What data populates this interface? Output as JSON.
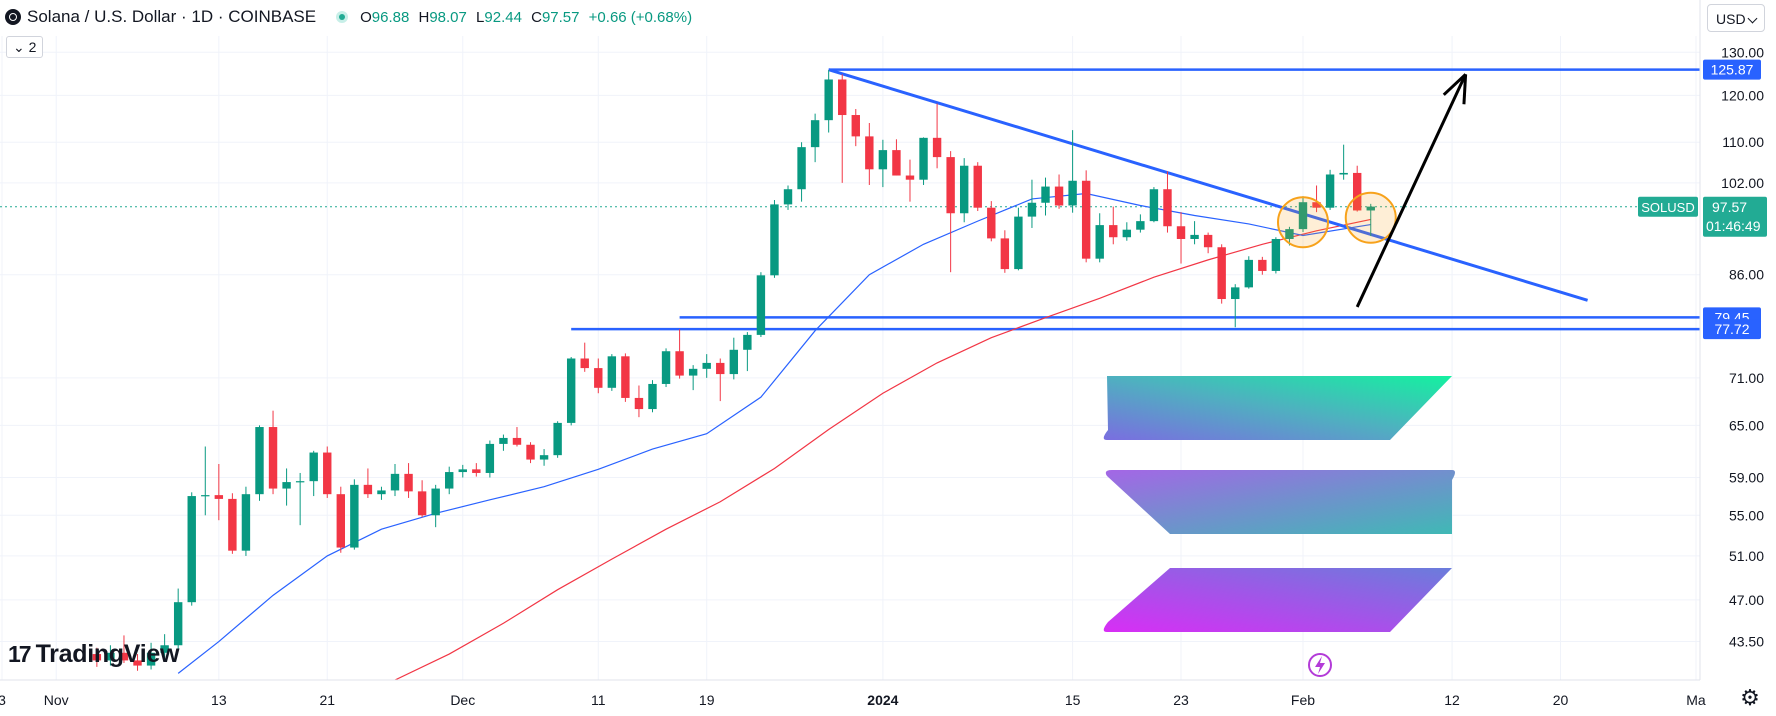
{
  "header": {
    "title": "Solana / U.S. Dollar · 1D · COINBASE",
    "open_label": "O",
    "open": "96.88",
    "high_label": "H",
    "high": "98.07",
    "low_label": "L",
    "low": "92.44",
    "close_label": "C",
    "close": "97.57",
    "change": "+0.66 (+0.68%)"
  },
  "indicator_count": "2",
  "currency": "USD",
  "brand": "TradingView",
  "colors": {
    "up": "#089981",
    "down": "#f23645",
    "trendline": "#2962ff",
    "ma_fast": "#2962ff",
    "ma_slow": "#f23645",
    "last_price": "#22ab94",
    "arrow": "#000000",
    "circle": "#f7a21b"
  },
  "chart_data": {
    "type": "candlestick",
    "symbol_tag": "SOLUSD",
    "last_price": "97.57",
    "countdown": "01:46:49",
    "y_axis": {
      "scale": "log",
      "ylim": [
        40.5,
        134
      ],
      "ticks": [
        "130.00",
        "120.00",
        "110.00",
        "102.00",
        "86.00",
        "71.00",
        "65.00",
        "59.00",
        "55.00",
        "51.00",
        "47.00",
        "43.50"
      ]
    },
    "x_axis": {
      "start": "2023-10-28",
      "end": "2024-03-01",
      "tick_labels": [
        {
          "label": "3",
          "date": "2023-10-28"
        },
        {
          "label": "Nov",
          "date": "2023-11-01"
        },
        {
          "label": "13",
          "date": "2023-11-13"
        },
        {
          "label": "21",
          "date": "2023-11-21"
        },
        {
          "label": "Dec",
          "date": "2023-12-01"
        },
        {
          "label": "11",
          "date": "2023-12-11"
        },
        {
          "label": "19",
          "date": "2023-12-19"
        },
        {
          "label": "2024",
          "date": "2024-01-01"
        },
        {
          "label": "15",
          "date": "2024-01-15"
        },
        {
          "label": "23",
          "date": "2024-01-23"
        },
        {
          "label": "Feb",
          "date": "2024-02-01"
        },
        {
          "label": "12",
          "date": "2024-02-12"
        },
        {
          "label": "20",
          "date": "2024-02-20"
        },
        {
          "label": "Ma",
          "date": "2024-03-01"
        }
      ]
    },
    "ohlc": [
      [
        "2023-11-04",
        42.5,
        43.0,
        41.5,
        42.0
      ],
      [
        "2023-11-05",
        42.0,
        43.2,
        41.6,
        42.6
      ],
      [
        "2023-11-06",
        42.6,
        44.0,
        41.8,
        42.0
      ],
      [
        "2023-11-07",
        42.0,
        42.5,
        41.2,
        41.6
      ],
      [
        "2023-11-08",
        41.6,
        43.4,
        41.3,
        42.6
      ],
      [
        "2023-11-09",
        42.6,
        44.1,
        42.0,
        43.2
      ],
      [
        "2023-11-10",
        43.2,
        48.0,
        42.9,
        46.8
      ],
      [
        "2023-11-11",
        46.8,
        57.4,
        46.5,
        57.0
      ],
      [
        "2023-11-12",
        57.0,
        62.5,
        55.0,
        57.1
      ],
      [
        "2023-11-13",
        57.1,
        60.5,
        54.5,
        56.7
      ],
      [
        "2023-11-14",
        56.7,
        57.3,
        51.2,
        51.5
      ],
      [
        "2023-11-15",
        51.5,
        58.0,
        51.0,
        57.2
      ],
      [
        "2023-11-16",
        57.2,
        65.0,
        56.5,
        64.8
      ],
      [
        "2023-11-17",
        64.8,
        66.8,
        57.2,
        57.8
      ],
      [
        "2023-11-18",
        57.8,
        60.0,
        56.0,
        58.5
      ],
      [
        "2023-11-19",
        58.5,
        59.5,
        54.0,
        58.6
      ],
      [
        "2023-11-20",
        58.6,
        62.0,
        57.0,
        61.8
      ],
      [
        "2023-11-21",
        61.8,
        62.5,
        56.8,
        57.2
      ],
      [
        "2023-11-22",
        57.2,
        58.0,
        51.3,
        51.8
      ],
      [
        "2023-11-23",
        51.8,
        58.8,
        51.6,
        58.2
      ],
      [
        "2023-11-24",
        58.2,
        60.0,
        56.8,
        57.2
      ],
      [
        "2023-11-25",
        57.2,
        58.0,
        56.6,
        57.6
      ],
      [
        "2023-11-26",
        57.6,
        60.5,
        57.0,
        59.4
      ],
      [
        "2023-11-27",
        59.4,
        60.6,
        56.8,
        57.5
      ],
      [
        "2023-11-28",
        57.5,
        58.7,
        54.8,
        55.0
      ],
      [
        "2023-11-29",
        55.0,
        58.2,
        53.8,
        57.8
      ],
      [
        "2023-11-30",
        57.8,
        60.2,
        57.2,
        59.6
      ],
      [
        "2023-12-01",
        59.6,
        60.4,
        59.0,
        59.9
      ],
      [
        "2023-12-02",
        59.9,
        60.6,
        59.1,
        59.5
      ],
      [
        "2023-12-03",
        59.5,
        63.2,
        59.0,
        62.8
      ],
      [
        "2023-12-04",
        62.8,
        63.9,
        62.0,
        63.5
      ],
      [
        "2023-12-05",
        63.5,
        64.8,
        62.5,
        62.7
      ],
      [
        "2023-12-06",
        62.7,
        63.0,
        60.6,
        61.0
      ],
      [
        "2023-12-07",
        61.0,
        62.2,
        60.3,
        61.5
      ],
      [
        "2023-12-08",
        61.5,
        65.5,
        61.2,
        65.3
      ],
      [
        "2023-12-09",
        65.3,
        73.8,
        65.0,
        73.6
      ],
      [
        "2023-12-10",
        73.6,
        75.8,
        71.8,
        72.3
      ],
      [
        "2023-12-11",
        72.3,
        73.6,
        69.0,
        69.7
      ],
      [
        "2023-12-12",
        69.7,
        74.2,
        69.3,
        73.9
      ],
      [
        "2023-12-13",
        73.9,
        74.3,
        67.9,
        68.4
      ],
      [
        "2023-12-14",
        68.4,
        70.0,
        66.0,
        67.0
      ],
      [
        "2023-12-15",
        67.0,
        70.7,
        66.6,
        70.2
      ],
      [
        "2023-12-16",
        70.2,
        75.0,
        69.8,
        74.6
      ],
      [
        "2023-12-17",
        74.6,
        77.7,
        70.9,
        71.3
      ],
      [
        "2023-12-18",
        71.3,
        72.7,
        69.4,
        72.2
      ],
      [
        "2023-12-19",
        72.2,
        74.2,
        71.0,
        73.0
      ],
      [
        "2023-12-20",
        73.0,
        73.6,
        68.0,
        71.5
      ],
      [
        "2023-12-21",
        71.5,
        76.5,
        70.8,
        74.8
      ],
      [
        "2023-12-22",
        74.8,
        77.3,
        71.9,
        76.9
      ],
      [
        "2023-12-23",
        76.9,
        86.4,
        76.6,
        85.9
      ],
      [
        "2023-12-24",
        85.9,
        98.8,
        85.5,
        98.0
      ],
      [
        "2023-12-25",
        98.0,
        101.5,
        97.0,
        100.8
      ],
      [
        "2023-12-26",
        100.8,
        110.0,
        98.5,
        109.0
      ],
      [
        "2023-12-27",
        109.0,
        116.0,
        106.0,
        114.6
      ],
      [
        "2023-12-28",
        114.6,
        125.8,
        112.0,
        123.6
      ],
      [
        "2023-12-29",
        123.6,
        124.8,
        102.0,
        115.7
      ],
      [
        "2023-12-30",
        115.7,
        117.0,
        109.2,
        111.2
      ],
      [
        "2023-12-31",
        111.2,
        114.0,
        101.6,
        104.6
      ],
      [
        "2024-01-01",
        104.6,
        110.5,
        101.2,
        108.4
      ],
      [
        "2024-01-02",
        108.4,
        110.6,
        103.4,
        103.4
      ],
      [
        "2024-01-03",
        103.4,
        106.5,
        98.5,
        102.6
      ],
      [
        "2024-01-04",
        102.6,
        111.0,
        101.6,
        110.9
      ],
      [
        "2024-01-05",
        110.9,
        118.2,
        104.8,
        107.0
      ],
      [
        "2024-01-06",
        107.0,
        108.2,
        86.4,
        96.4
      ],
      [
        "2024-01-07",
        96.4,
        106.8,
        94.8,
        105.3
      ],
      [
        "2024-01-08",
        105.3,
        106.0,
        96.8,
        97.4
      ],
      [
        "2024-01-09",
        97.4,
        98.6,
        91.5,
        92.0
      ],
      [
        "2024-01-10",
        92.0,
        93.4,
        86.3,
        86.9
      ],
      [
        "2024-01-11",
        86.9,
        97.4,
        86.7,
        95.8
      ],
      [
        "2024-01-12",
        95.8,
        102.6,
        93.8,
        98.3
      ],
      [
        "2024-01-13",
        98.3,
        103.0,
        96.0,
        101.3
      ],
      [
        "2024-01-14",
        101.3,
        103.6,
        97.2,
        97.8
      ],
      [
        "2024-01-15",
        97.8,
        112.5,
        96.5,
        102.4
      ],
      [
        "2024-01-16",
        102.4,
        104.4,
        88.0,
        88.6
      ],
      [
        "2024-01-17",
        88.6,
        96.4,
        88.0,
        94.3
      ],
      [
        "2024-01-18",
        94.3,
        97.6,
        91.0,
        92.2
      ],
      [
        "2024-01-19",
        92.2,
        94.8,
        91.6,
        93.5
      ],
      [
        "2024-01-20",
        93.5,
        96.2,
        93.0,
        95.0
      ],
      [
        "2024-01-21",
        95.0,
        101.2,
        94.8,
        100.8
      ],
      [
        "2024-01-22",
        100.8,
        104.2,
        93.0,
        94.1
      ],
      [
        "2024-01-23",
        94.1,
        96.6,
        87.8,
        91.9
      ],
      [
        "2024-01-24",
        91.9,
        95.0,
        91.0,
        92.6
      ],
      [
        "2024-01-25",
        92.6,
        93.0,
        89.5,
        90.5
      ],
      [
        "2024-01-26",
        90.5,
        91.0,
        81.5,
        82.2
      ],
      [
        "2024-01-27",
        82.2,
        84.5,
        78.0,
        84.0
      ],
      [
        "2024-01-28",
        84.0,
        89.0,
        83.8,
        88.4
      ],
      [
        "2024-01-29",
        88.4,
        88.9,
        86.0,
        86.6
      ],
      [
        "2024-01-30",
        86.6,
        92.2,
        86.2,
        91.9
      ],
      [
        "2024-01-31",
        91.9,
        94.0,
        90.8,
        93.6
      ],
      [
        "2024-02-01",
        93.6,
        99.5,
        93.1,
        98.4
      ],
      [
        "2024-02-02",
        98.4,
        101.5,
        96.6,
        97.4
      ],
      [
        "2024-02-03",
        97.4,
        104.5,
        97.0,
        103.6
      ],
      [
        "2024-02-04",
        103.6,
        109.5,
        102.6,
        103.9
      ],
      [
        "2024-02-05",
        103.9,
        105.3,
        96.7,
        96.9
      ],
      [
        "2024-02-06",
        96.9,
        98.1,
        92.4,
        97.6
      ]
    ],
    "series": [
      {
        "name": "MA fast",
        "color": "#2962ff",
        "values": [
          [
            "2023-11-10",
            41.0
          ],
          [
            "2023-11-13",
            43.5
          ],
          [
            "2023-11-17",
            47.4
          ],
          [
            "2023-11-21",
            51.0
          ],
          [
            "2023-11-25",
            53.6
          ],
          [
            "2023-11-29",
            55.2
          ],
          [
            "2023-12-03",
            56.6
          ],
          [
            "2023-12-07",
            58.0
          ],
          [
            "2023-12-11",
            59.9
          ],
          [
            "2023-12-15",
            62.2
          ],
          [
            "2023-12-19",
            64.0
          ],
          [
            "2023-12-23",
            68.5
          ],
          [
            "2023-12-27",
            77.5
          ],
          [
            "2023-12-31",
            86.0
          ],
          [
            "2024-01-04",
            91.0
          ],
          [
            "2024-01-08",
            95.0
          ],
          [
            "2024-01-12",
            99.0
          ],
          [
            "2024-01-16",
            100.0
          ],
          [
            "2024-01-20",
            97.8
          ],
          [
            "2024-01-24",
            96.0
          ],
          [
            "2024-01-28",
            94.5
          ],
          [
            "2024-02-01",
            92.5
          ],
          [
            "2024-02-06",
            94.4
          ]
        ]
      },
      {
        "name": "MA slow",
        "color": "#f23645",
        "values": [
          [
            "2023-11-26",
            40.5
          ],
          [
            "2023-11-30",
            42.5
          ],
          [
            "2023-12-04",
            45.0
          ],
          [
            "2023-12-08",
            47.9
          ],
          [
            "2023-12-12",
            50.7
          ],
          [
            "2023-12-16",
            53.6
          ],
          [
            "2023-12-20",
            56.4
          ],
          [
            "2023-12-24",
            60.0
          ],
          [
            "2023-12-28",
            64.5
          ],
          [
            "2024-01-01",
            69.0
          ],
          [
            "2024-01-05",
            73.0
          ],
          [
            "2024-01-09",
            76.5
          ],
          [
            "2024-01-13",
            79.4
          ],
          [
            "2024-01-17",
            82.3
          ],
          [
            "2024-01-21",
            85.6
          ],
          [
            "2024-01-25",
            88.4
          ],
          [
            "2024-01-29",
            91.0
          ],
          [
            "2024-02-02",
            93.3
          ],
          [
            "2024-02-06",
            95.3
          ]
        ]
      }
    ],
    "horizontal_levels": [
      {
        "label": "125.87",
        "value": 125.87,
        "from": "2023-12-28"
      },
      {
        "label": "79.45",
        "value": 79.45,
        "from": "2023-12-17"
      },
      {
        "label": "77.72",
        "value": 77.72,
        "from": "2023-12-09"
      }
    ],
    "trendline": [
      [
        "2023-12-28",
        125.87
      ],
      [
        "2024-02-22",
        82.0
      ]
    ],
    "arrow": [
      [
        "2024-02-05",
        81.0
      ],
      [
        "2024-02-13",
        124.8
      ]
    ],
    "circles": [
      [
        "2024-02-01",
        94.8
      ],
      [
        "2024-02-06",
        95.6
      ]
    ]
  }
}
